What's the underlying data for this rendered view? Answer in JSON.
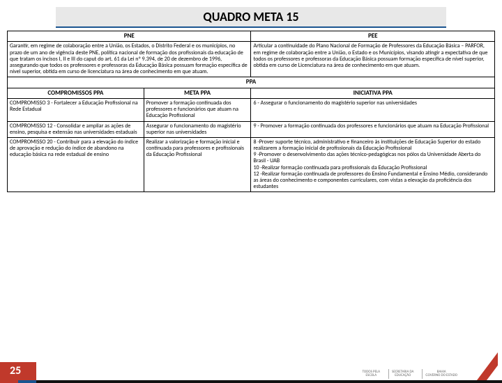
{
  "title": "QUADRO META 15",
  "headers": {
    "pne": "PNE",
    "pee": "PEE",
    "ppa": "PPA",
    "comp": "COMPROMISSOS PPA",
    "meta": "META PPA",
    "init": "INICIATIVA PPA"
  },
  "pne": "Garantir, em regime de colaboração entre a União, os Estados, o Distrito Federal e os municípios, no prazo de um ano de vigência deste PNE, política nacional de formação dos profissionais da educação de que tratam os incisos I, II e III do caput do art. 61 da Lei nº 9.394, de 20 de dezembro de 1996, assegurando que todos os professores e professoras da Educação Básica possuam formação específica de nível superior, obtida em curso de licenciatura na área de conhecimento em que atuam.",
  "pee": "Articular a continuidade do Plano Nacional de Formação de Professores da Educação Básica – PARFOR, em regime de colaboração entre a União, o Estado e os Municípios, visando atingir a expectativa de que todos os professores e professoras da Educação Básica possuam formação específica de nível superior, obtida em curso de Licenciatura na área de conhecimento em que atuam.",
  "rows": [
    {
      "comp": "COMPROMISSO 3 - Fortalecer a Educação Profissional na Rede Estadual",
      "meta": "Promover a formação continuada dos professores e funcionários que atuam na Educação Profissional",
      "init": "6 - Assegurar o funcionamento do magistério superior nas universidades"
    },
    {
      "comp": "COMPROMISSO 12 - Consolidar e ampliar as ações de ensino, pesquisa e extensão nas universidades estaduais",
      "meta": "Assegurar o funcionamento do magistério superior nas universidades",
      "init": "9 - Promover a formação continuada dos professores e funcionários que atuam na Educação Profissional"
    },
    {
      "comp": "COMPROMISSO 20 - Contribuir para a elevação do índice de aprovação e redução do índice de abandono na educação básica na rede estadual de ensino",
      "meta": "Realizar a valorização e formação inicial e continuada para professores e profissionais da Educação Profissional",
      "init": "8 -Prover suporte técnico, administrativo e financeiro às instituições de Educação Superior do estado realizarem a formação inicial de profissionais da Educação Profissional\n9 -Promover o desenvolvimento das ações técnico-pedagógicas nos pólos da Universidade Aberta do Brasil - UAB\n10 -Realizar formação continuada para profissionais da Educação Profissional\n12 -Realizar formação continuada de professores do Ensino Fundamental e Ensino Médio, considerando as áreas do conhecimento e componentes curriculares, com vistas a elevação da proficiência dos estudantes"
    }
  ],
  "page": "25",
  "logos": [
    "TODOS PELA\nESCOLA",
    "SECRETARIA DA\nEDUCAÇÃO",
    "BAHIA\nGOVERNO DO ESTADO"
  ]
}
